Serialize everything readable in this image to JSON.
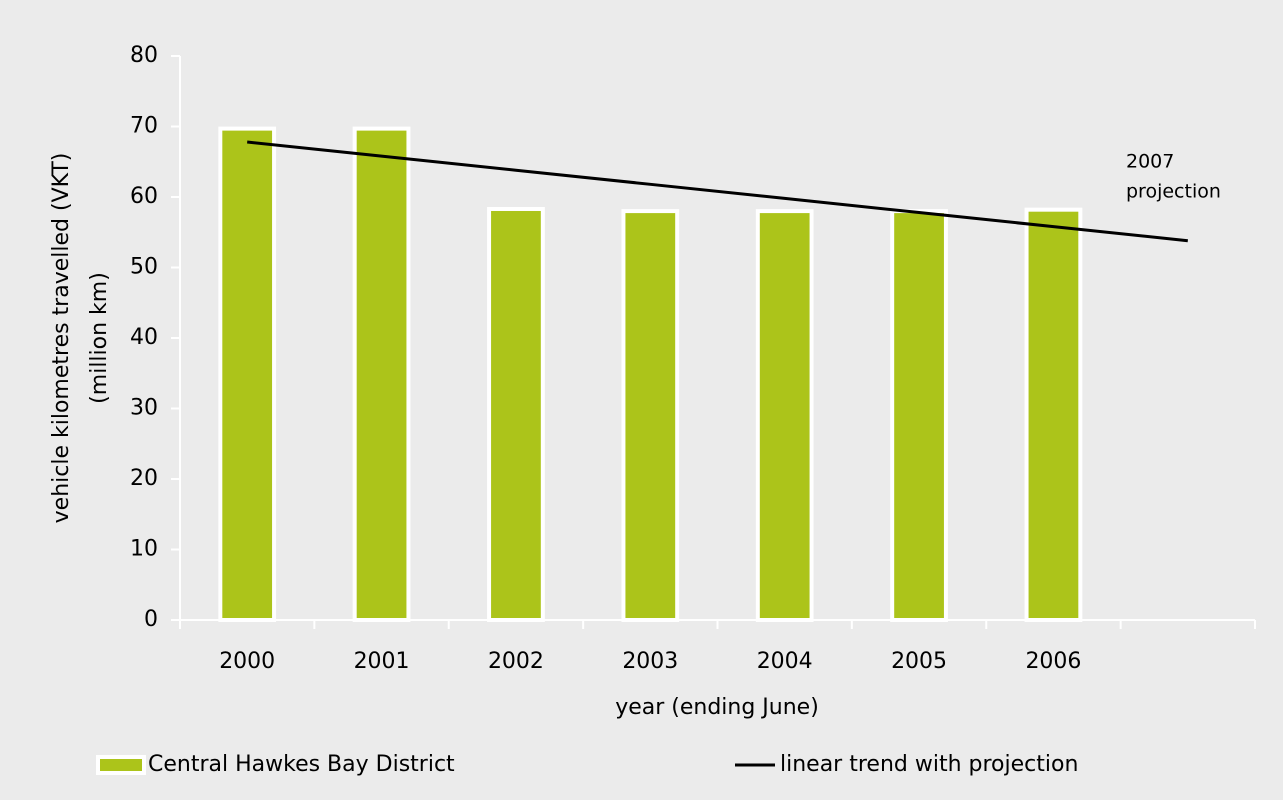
{
  "chart_data": {
    "type": "bar",
    "categories": [
      "2000",
      "2001",
      "2002",
      "2003",
      "2004",
      "2005",
      "2006",
      null
    ],
    "series": [
      {
        "name": "Central Hawkes Bay District",
        "type": "bar",
        "color": "#acc41a",
        "values": [
          69.7,
          69.7,
          58.3,
          58,
          58,
          58,
          58.2,
          null
        ]
      },
      {
        "name": "linear trend with projection",
        "type": "line",
        "color": "#000000",
        "values": [
          67.8,
          65.8,
          63.8,
          61.8,
          59.8,
          57.8,
          55.8,
          53.8
        ]
      }
    ],
    "ylim": [
      0,
      80
    ],
    "yticks": [
      0,
      10,
      20,
      30,
      40,
      50,
      60,
      70,
      80
    ],
    "ylabel": [
      "vehicle kilometres travelled (VKT)",
      "(million km)"
    ],
    "xlabel": "year (ending June)",
    "annotation": [
      "2007",
      "projection"
    ],
    "legend": "bottom"
  }
}
